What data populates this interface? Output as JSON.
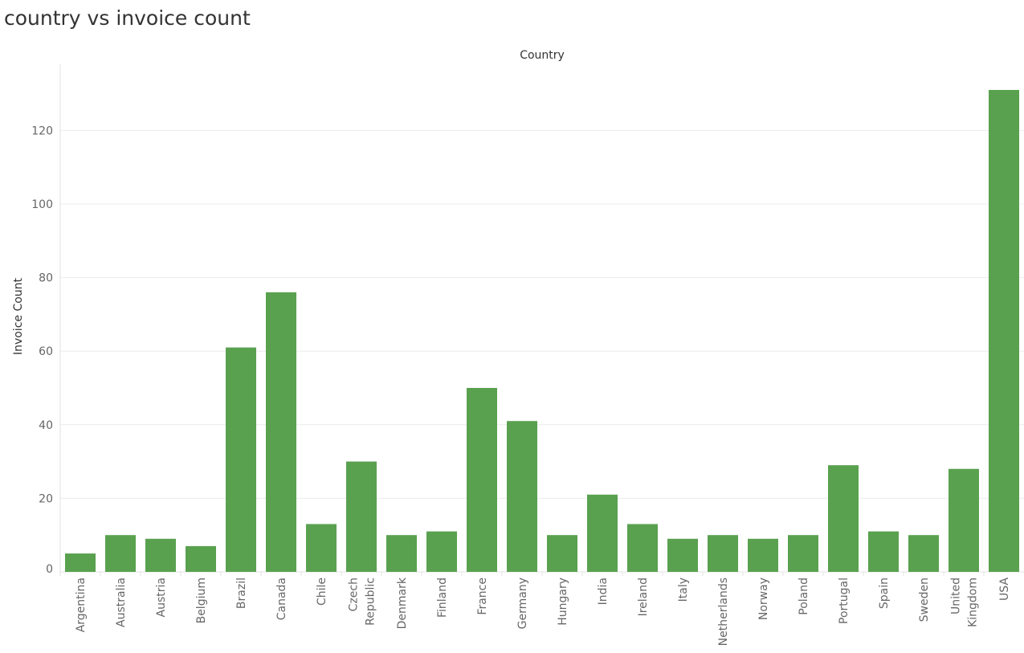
{
  "title": "country vs invoice count",
  "chart_data": {
    "type": "bar",
    "title": "country vs invoice count",
    "column_header": "Country",
    "ylabel": "Invoice Count",
    "ylim": [
      0,
      131
    ],
    "yticks": [
      0,
      20,
      40,
      60,
      80,
      100,
      120
    ],
    "grid": true,
    "bar_color": "#59a14f",
    "categories": [
      [
        "Argentina"
      ],
      [
        "Australia"
      ],
      [
        "Austria"
      ],
      [
        "Belgium"
      ],
      [
        "Brazil"
      ],
      [
        "Canada"
      ],
      [
        "Chile"
      ],
      [
        "Czech",
        "Republic"
      ],
      [
        "Denmark"
      ],
      [
        "Finland"
      ],
      [
        "France"
      ],
      [
        "Germany"
      ],
      [
        "Hungary"
      ],
      [
        "India"
      ],
      [
        "Ireland"
      ],
      [
        "Italy"
      ],
      [
        "Netherlands"
      ],
      [
        "Norway"
      ],
      [
        "Poland"
      ],
      [
        "Portugal"
      ],
      [
        "Spain"
      ],
      [
        "Sweden"
      ],
      [
        "United",
        "Kingdom"
      ],
      [
        "USA"
      ]
    ],
    "values": [
      5,
      10,
      9,
      7,
      61,
      76,
      13,
      30,
      10,
      11,
      50,
      41,
      10,
      21,
      13,
      9,
      10,
      9,
      10,
      29,
      11,
      10,
      28,
      131
    ]
  }
}
